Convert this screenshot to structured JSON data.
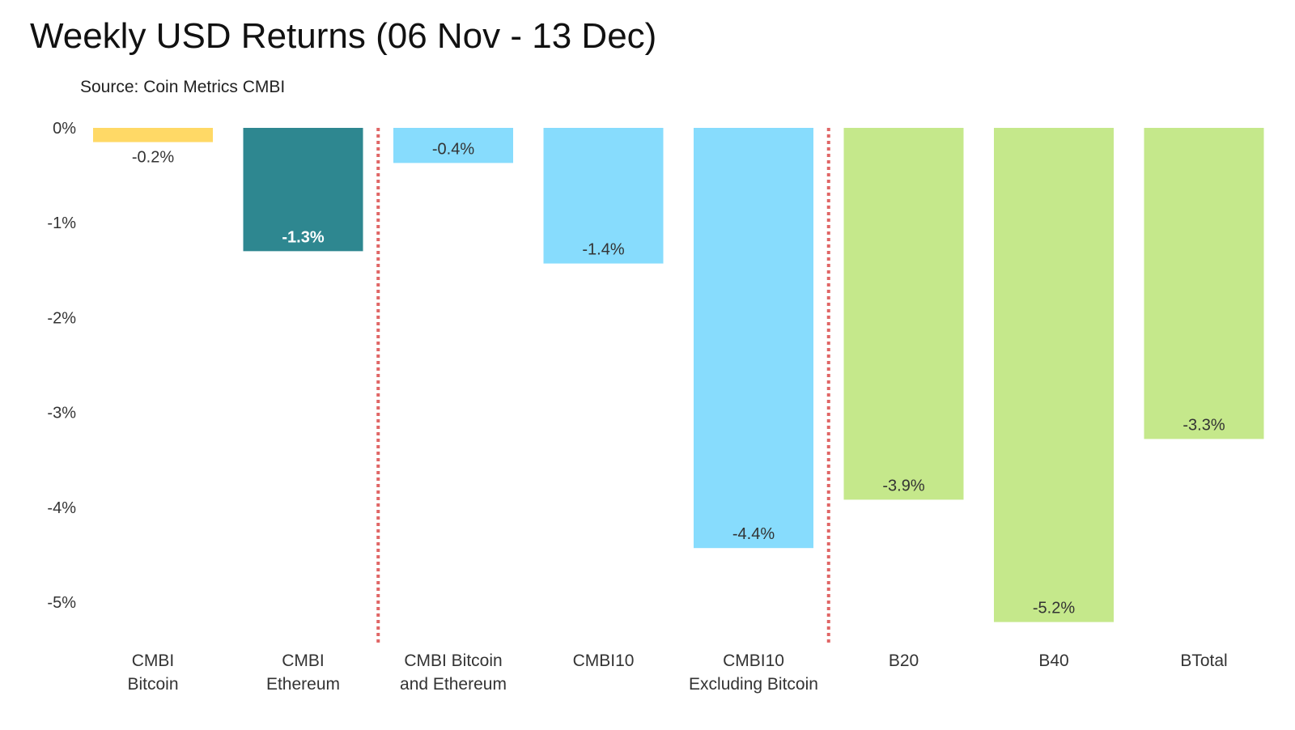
{
  "chart_data": {
    "type": "bar",
    "title": "Weekly USD Returns (06 Nov - 13 Dec)",
    "subtitle": "Source: Coin Metrics CMBI",
    "xlabel": "",
    "ylabel": "",
    "ylim": [
      -5.4,
      0
    ],
    "yticks": [
      {
        "value": 0,
        "label": "0%"
      },
      {
        "value": -1,
        "label": "-1%"
      },
      {
        "value": -2,
        "label": "-2%"
      },
      {
        "value": -3,
        "label": "-3%"
      },
      {
        "value": -4,
        "label": "-4%"
      },
      {
        "value": -5,
        "label": "-5%"
      }
    ],
    "grid": false,
    "categories": [
      [
        "CMBI",
        "Bitcoin"
      ],
      [
        "CMBI",
        "Ethereum"
      ],
      [
        "CMBI Bitcoin",
        "and Ethereum"
      ],
      [
        "CMBI10"
      ],
      [
        "CMBI10",
        "Excluding Bitcoin"
      ],
      [
        "B20"
      ],
      [
        "B40"
      ],
      [
        "BTotal"
      ]
    ],
    "values": [
      -0.15,
      -1.3,
      -0.37,
      -1.43,
      -4.43,
      -3.92,
      -5.21,
      -3.28
    ],
    "data_labels": [
      "-0.2%",
      "-1.3%",
      "-0.4%",
      "-1.4%",
      "-4.4%",
      "-3.9%",
      "-5.2%",
      "-3.3%"
    ],
    "colors": [
      "#FFD966",
      "#2E8790",
      "#87DCFD",
      "#87DCFD",
      "#87DCFD",
      "#C5E88B",
      "#C5E88B",
      "#C5E88B"
    ],
    "label_colors": [
      "#333333",
      "#FFFFFF",
      "#333333",
      "#333333",
      "#333333",
      "#333333",
      "#333333",
      "#333333"
    ],
    "separators_after_index": [
      1,
      4
    ],
    "separator_color": "#E06666"
  }
}
